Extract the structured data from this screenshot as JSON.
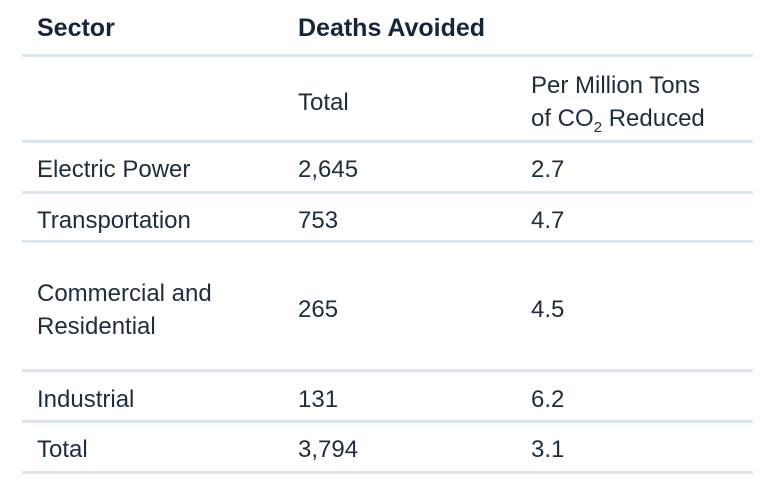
{
  "table": {
    "header": {
      "sector": "Sector",
      "deaths_avoided": "Deaths Avoided",
      "total": "Total",
      "per_million_line1": "Per Million Tons",
      "per_million_line2_pre": "of CO",
      "per_million_line2_sub": "2",
      "per_million_line2_post": " Reduced"
    },
    "rows": [
      {
        "sector": "Electric Power",
        "total": "2,645",
        "per_million": "2.7"
      },
      {
        "sector": "Transportation",
        "total": "753",
        "per_million": "4.7"
      },
      {
        "sector_line1": "Commercial and",
        "sector_line2": "Residential",
        "total": "265",
        "per_million": "4.5"
      },
      {
        "sector": "Industrial",
        "total": "131",
        "per_million": "6.2"
      },
      {
        "sector": "Total",
        "total": "3,794",
        "per_million": "3.1"
      }
    ]
  }
}
